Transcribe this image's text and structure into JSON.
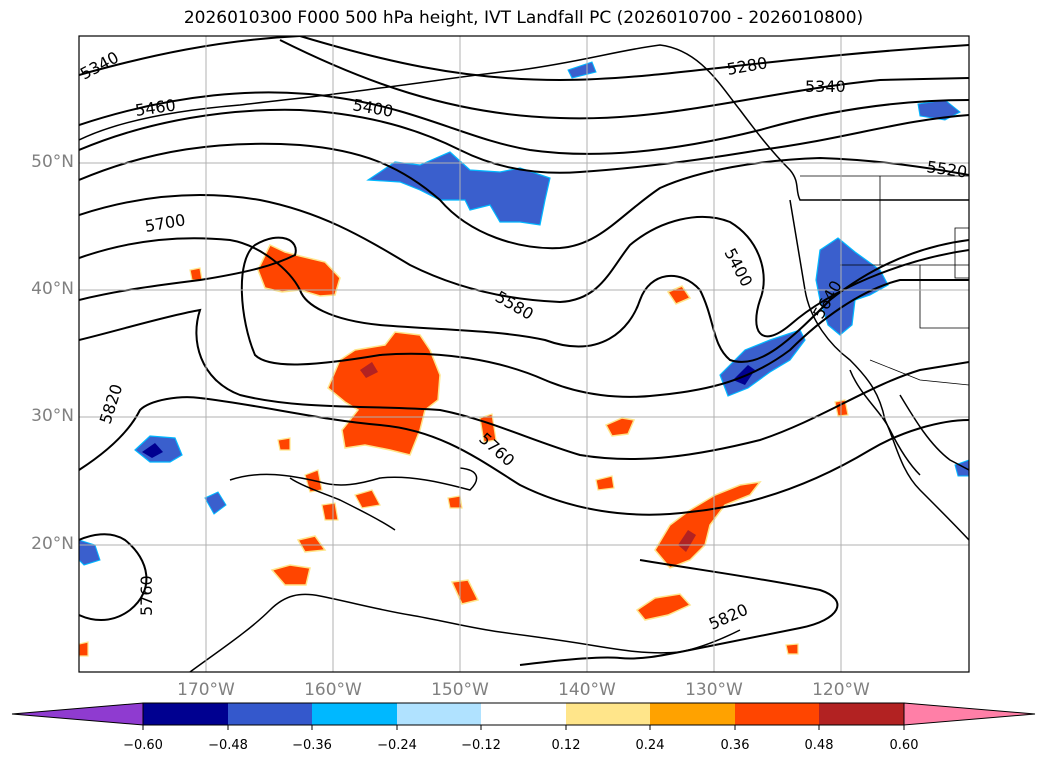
{
  "title": "2026010300 F000 500 hPa height, IVT Landfall PC (2026010700 - 2026010800)",
  "map": {
    "lat_labels": [
      "50°N",
      "40°N",
      "30°N",
      "20°N"
    ],
    "lon_labels": [
      "170°W",
      "160°W",
      "150°W",
      "140°W",
      "130°W",
      "120°W"
    ],
    "contour_labels": [
      "5340",
      "5280",
      "5340",
      "5460",
      "5400",
      "5520",
      "5700",
      "5400",
      "5580",
      "5640",
      "5820",
      "5760",
      "5760",
      "5820"
    ],
    "colors": {
      "coast": "#000000",
      "grid": "#b0b0b0",
      "contour": "#000000"
    }
  },
  "colorbar": {
    "ticks": [
      "−0.60",
      "−0.48",
      "−0.36",
      "−0.24",
      "−0.12",
      "0.12",
      "0.24",
      "0.36",
      "0.48",
      "0.60"
    ],
    "colors": [
      "#8f3bd0",
      "#000090",
      "#3458cc",
      "#00b8ff",
      "#b0e2ff",
      "#ffffff",
      "#ffe58a",
      "#ffa200",
      "#ff4500",
      "#b22222",
      "#ff7fa7"
    ]
  }
}
